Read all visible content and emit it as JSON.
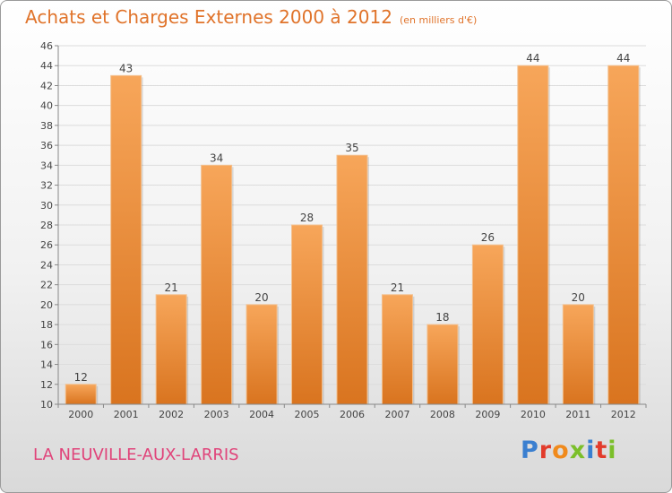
{
  "header": {
    "title": "Achats et Charges Externes 2000 à 2012",
    "unit": "(en milliers d'€)"
  },
  "footer": {
    "commune": "LA NEUVILLE-AUX-LARRIS",
    "brand": "Proxiti",
    "brand_colors": [
      "#3a7fd0",
      "#e23b2b",
      "#f08a1c",
      "#7bbf2a",
      "#3a7fd0",
      "#e23b2b",
      "#7bbf2a"
    ]
  },
  "colors": {
    "bar_light": "#f7a65a",
    "bar_dark": "#d9741f",
    "grid": "#dcdcdc",
    "axis": "#888888",
    "text": "#444444"
  },
  "chart_data": {
    "type": "bar",
    "categories": [
      "2000",
      "2001",
      "2002",
      "2003",
      "2004",
      "2005",
      "2006",
      "2007",
      "2008",
      "2009",
      "2010",
      "2011",
      "2012"
    ],
    "values": [
      12,
      43,
      21,
      34,
      20,
      28,
      35,
      21,
      18,
      26,
      44,
      20,
      44
    ],
    "ylim": [
      10,
      46
    ],
    "yticks": [
      10,
      12,
      14,
      16,
      18,
      20,
      22,
      24,
      26,
      28,
      30,
      32,
      34,
      36,
      38,
      40,
      42,
      44,
      46
    ],
    "grid": true,
    "legend": "none"
  }
}
